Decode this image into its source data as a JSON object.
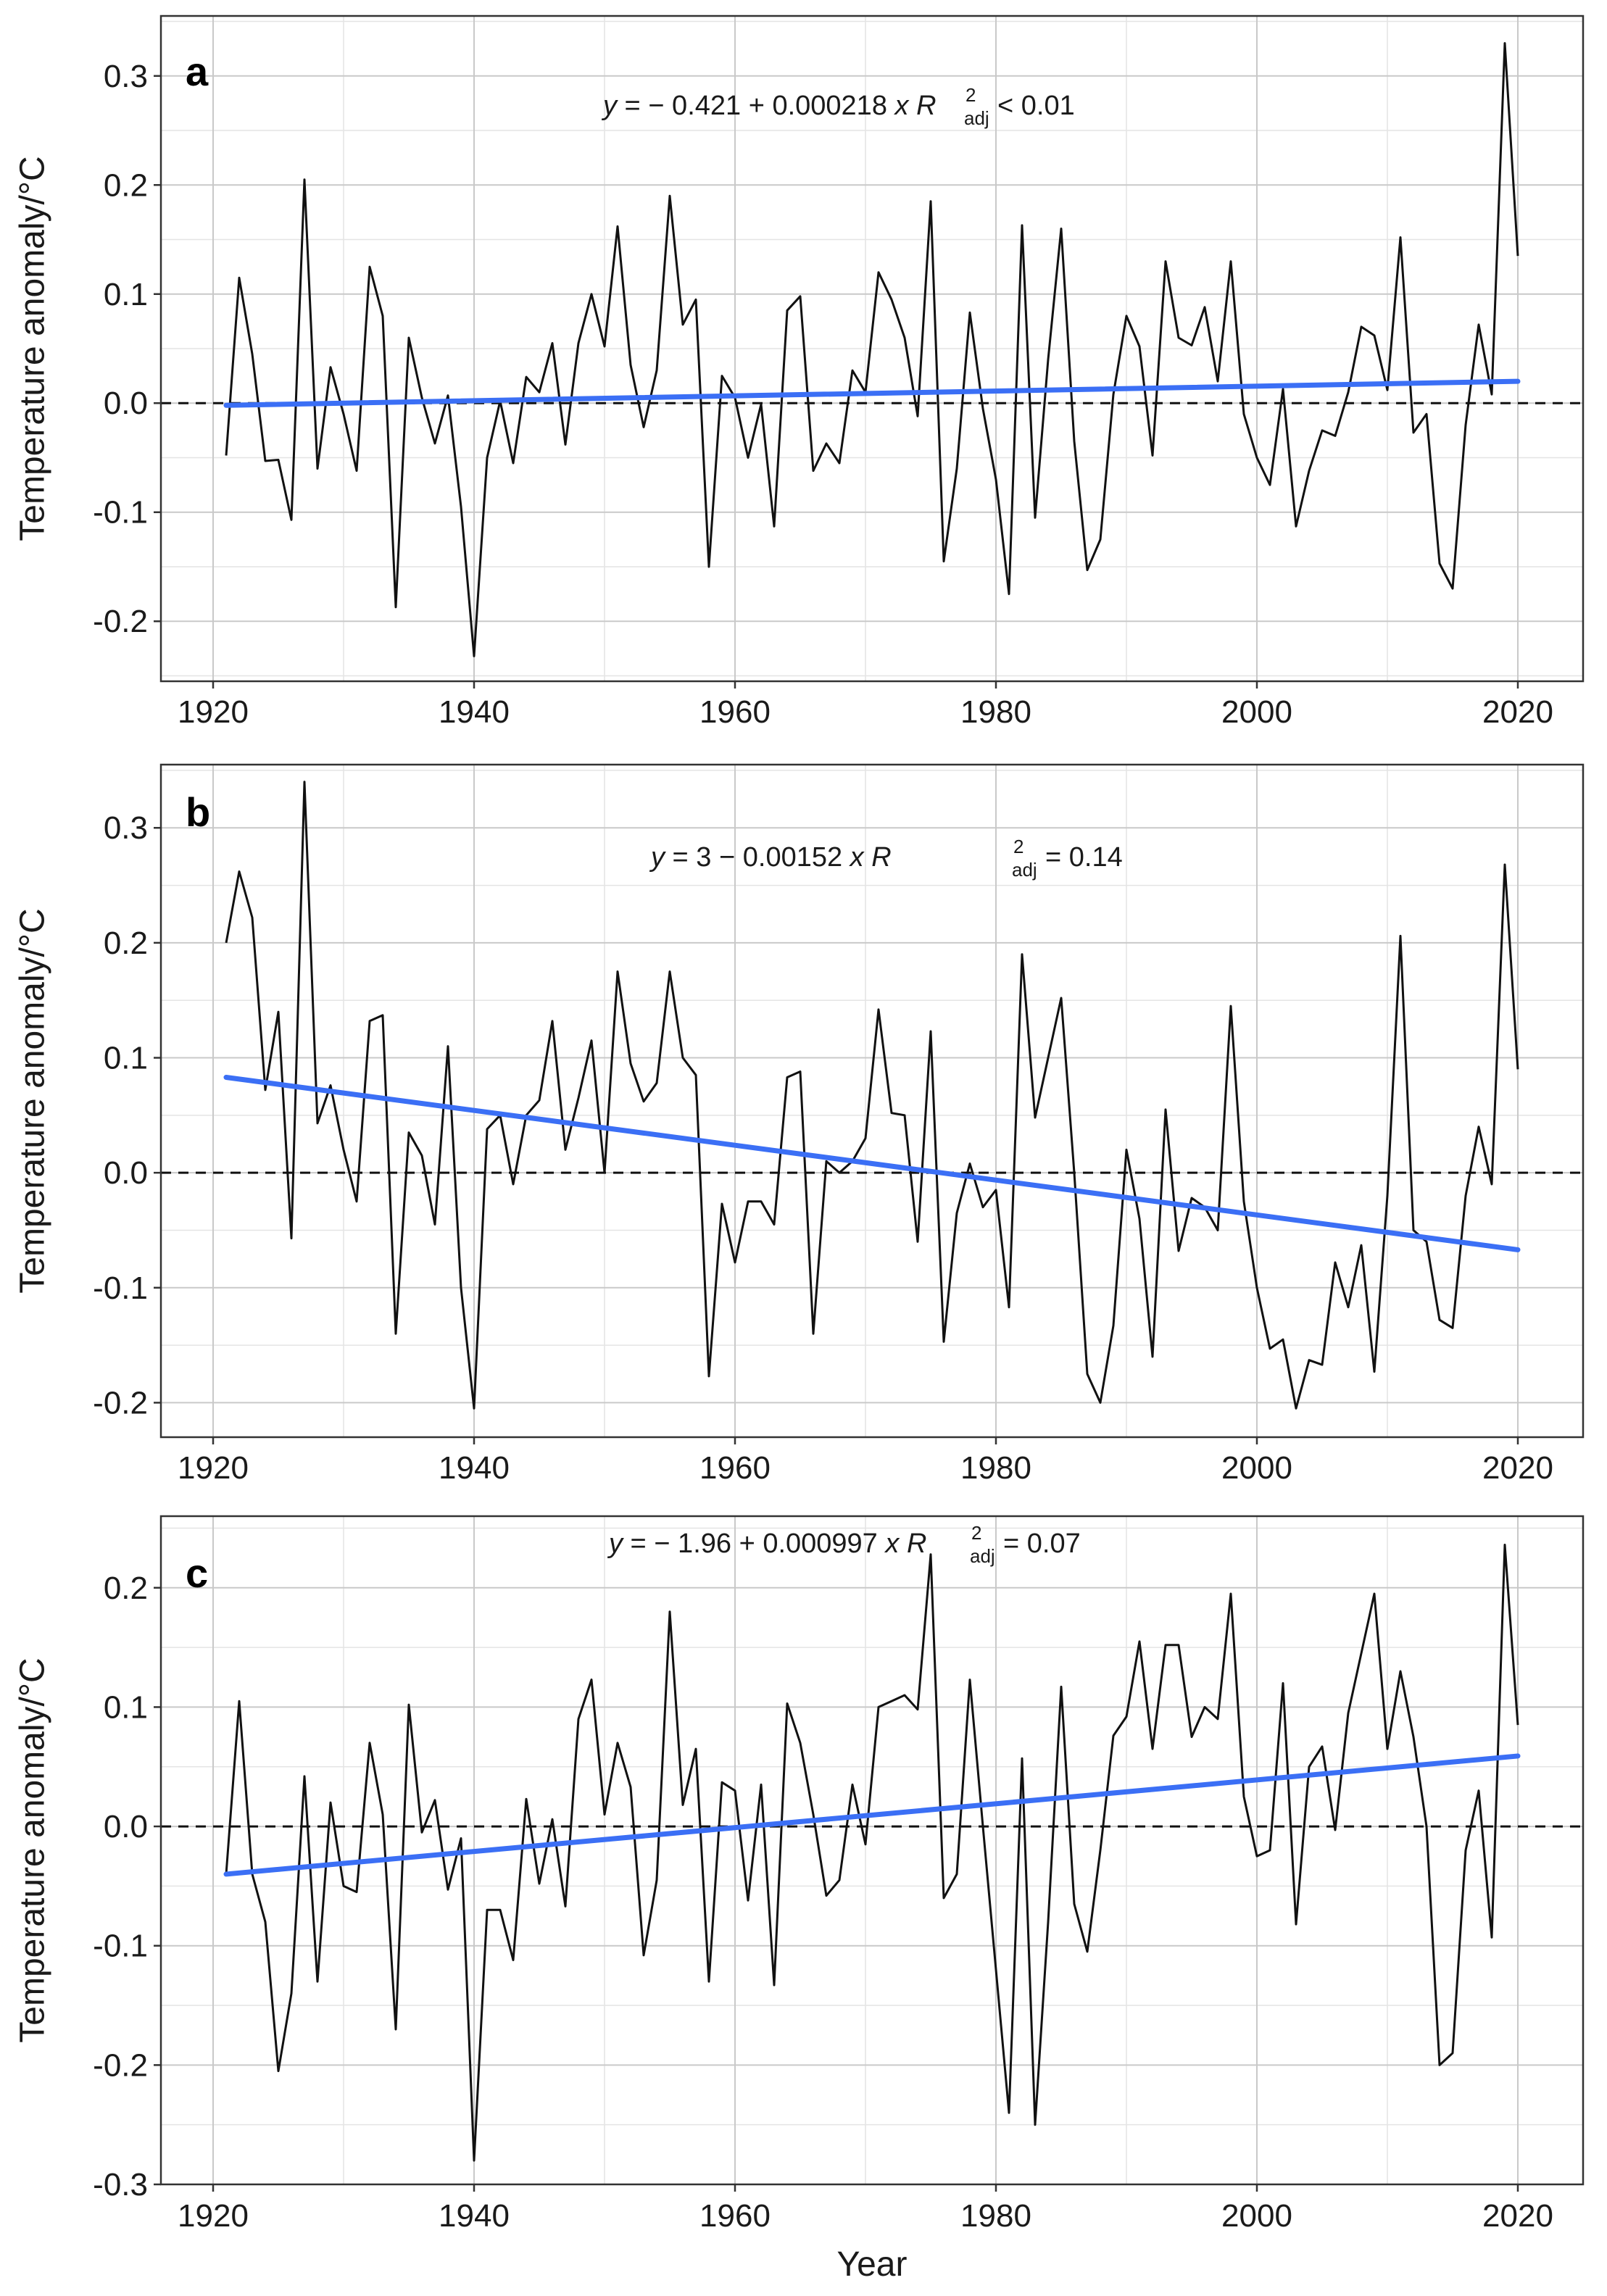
{
  "chart_data": [
    {
      "type": "line",
      "panel_label": "a",
      "xlabel": "",
      "ylabel": "Temperature anomaly/°C",
      "xlim": [
        1916,
        2025
      ],
      "ylim": [
        -0.255,
        0.355
      ],
      "x_ticks": [
        1920,
        1940,
        1960,
        1980,
        2000,
        2020
      ],
      "x_tick_labels": [
        "1920",
        "1940",
        "1960",
        "1980",
        "2000",
        "2020"
      ],
      "y_ticks": [
        -0.2,
        -0.1,
        0.0,
        0.1,
        0.2,
        0.3
      ],
      "y_tick_labels": [
        "-0.2",
        "-0.1",
        "0.0",
        "0.1",
        "0.2",
        "0.3"
      ],
      "grid": true,
      "reference_line": {
        "y": 0,
        "style": "dashed"
      },
      "equation": {
        "lhs": "y",
        "rhs": " = − 0.421 + 0.000218 ",
        "var": "x",
        "r_symbol": "R",
        "r_sup": "2",
        "r_sub": "adj",
        "r_value": " < 0.01"
      },
      "series": [
        {
          "name": "Temperature anomaly",
          "color": "#111111",
          "x_start": 1921,
          "values": [
            -0.048,
            0.115,
            0.045,
            -0.053,
            -0.052,
            -0.107,
            0.205,
            -0.06,
            0.033,
            -0.01,
            -0.062,
            0.125,
            0.08,
            -0.187,
            0.06,
            0.005,
            -0.037,
            0.007,
            -0.095,
            -0.232,
            -0.05,
            0.002,
            -0.055,
            0.024,
            0.01,
            0.055,
            -0.038,
            0.055,
            0.1,
            0.052,
            0.162,
            0.035,
            -0.022,
            0.03,
            0.19,
            0.072,
            0.095,
            -0.15,
            0.025,
            0.005,
            -0.05,
            -0.001,
            -0.113,
            0.085,
            0.098,
            -0.062,
            -0.037,
            -0.055,
            0.03,
            0.01,
            0.12,
            0.095,
            0.06,
            -0.012,
            0.185,
            -0.145,
            -0.06,
            0.083,
            -0.005,
            -0.07,
            -0.175,
            0.163,
            -0.105,
            0.04,
            0.16,
            -0.035,
            -0.153,
            -0.125,
            0.008,
            0.08,
            0.052,
            -0.048,
            0.13,
            0.06,
            0.053,
            0.088,
            0.02,
            0.13,
            -0.01,
            -0.05,
            -0.075,
            0.013,
            -0.113,
            -0.062,
            -0.025,
            -0.03,
            0.01,
            0.07,
            0.062,
            0.012,
            0.152,
            -0.027,
            -0.01,
            -0.147,
            -0.17,
            -0.02,
            0.072,
            0.008,
            0.33,
            0.135
          ]
        },
        {
          "name": "Linear trend",
          "color": "#3b6ff5",
          "x": [
            1921,
            2020
          ],
          "y": [
            -0.002,
            0.02
          ]
        }
      ]
    },
    {
      "type": "line",
      "panel_label": "b",
      "xlabel": "",
      "ylabel": "Temperature anomaly/°C",
      "xlim": [
        1916,
        2025
      ],
      "ylim": [
        -0.23,
        0.355
      ],
      "x_ticks": [
        1920,
        1940,
        1960,
        1980,
        2000,
        2020
      ],
      "x_tick_labels": [
        "1920",
        "1940",
        "1960",
        "1980",
        "2000",
        "2020"
      ],
      "y_ticks": [
        -0.2,
        -0.1,
        0.0,
        0.1,
        0.2,
        0.3
      ],
      "y_tick_labels": [
        "-0.2",
        "-0.1",
        "0.0",
        "0.1",
        "0.2",
        "0.3"
      ],
      "grid": true,
      "reference_line": {
        "y": 0,
        "style": "dashed"
      },
      "equation": {
        "lhs": "y",
        "rhs": " = 3 − 0.00152 ",
        "var": "x",
        "r_symbol": "R",
        "r_sup": "2",
        "r_sub": "adj",
        "r_value": " = 0.14"
      },
      "series": [
        {
          "name": "Temperature anomaly",
          "color": "#111111",
          "x_start": 1921,
          "values": [
            0.2,
            0.262,
            0.222,
            0.072,
            0.14,
            -0.057,
            0.34,
            0.043,
            0.076,
            0.02,
            -0.025,
            0.132,
            0.137,
            -0.14,
            0.035,
            0.015,
            -0.045,
            0.11,
            -0.1,
            -0.205,
            0.038,
            0.05,
            -0.01,
            0.05,
            0.063,
            0.132,
            0.02,
            0.065,
            0.115,
            0.0,
            0.175,
            0.095,
            0.062,
            0.078,
            0.175,
            0.1,
            0.085,
            -0.177,
            -0.027,
            -0.078,
            -0.025,
            -0.025,
            -0.045,
            0.083,
            0.088,
            -0.14,
            0.01,
            0.0,
            0.01,
            0.03,
            0.142,
            0.052,
            0.05,
            -0.06,
            0.123,
            -0.147,
            -0.035,
            0.008,
            -0.03,
            -0.015,
            -0.117,
            0.19,
            0.048,
            0.1,
            0.152,
            0.0,
            -0.175,
            -0.2,
            -0.133,
            0.02,
            -0.04,
            -0.16,
            0.055,
            -0.068,
            -0.022,
            -0.03,
            -0.05,
            0.145,
            -0.025,
            -0.1,
            -0.153,
            -0.145,
            -0.205,
            -0.163,
            -0.167,
            -0.078,
            -0.117,
            -0.063,
            -0.173,
            -0.02,
            0.206,
            -0.05,
            -0.06,
            -0.128,
            -0.135,
            -0.02,
            0.04,
            -0.01,
            0.268,
            0.09
          ]
        },
        {
          "name": "Linear trend",
          "color": "#3b6ff5",
          "x": [
            1921,
            2020
          ],
          "y": [
            0.083,
            -0.067
          ]
        }
      ]
    },
    {
      "type": "line",
      "panel_label": "c",
      "xlabel": "Year",
      "ylabel": "Temperature anomaly/°C",
      "xlim": [
        1916,
        2025
      ],
      "ylim": [
        -0.3,
        0.26
      ],
      "x_ticks": [
        1920,
        1940,
        1960,
        1980,
        2000,
        2020
      ],
      "x_tick_labels": [
        "1920",
        "1940",
        "1960",
        "1980",
        "2000",
        "2020"
      ],
      "y_ticks": [
        -0.3,
        -0.2,
        -0.1,
        0.0,
        0.1,
        0.2
      ],
      "y_tick_labels": [
        "-0.3",
        "-0.2",
        "-0.1",
        "0.0",
        "0.1",
        "0.2"
      ],
      "grid": true,
      "reference_line": {
        "y": 0,
        "style": "dashed"
      },
      "equation": {
        "lhs": "y",
        "rhs": " = − 1.96 + 0.000997 ",
        "var": "x",
        "r_symbol": "R",
        "r_sup": "2",
        "r_sub": "adj",
        "r_value": " = 0.07"
      },
      "series": [
        {
          "name": "Temperature anomaly",
          "color": "#111111",
          "x_start": 1921,
          "values": [
            -0.04,
            0.105,
            -0.04,
            -0.08,
            -0.205,
            -0.14,
            0.042,
            -0.13,
            0.02,
            -0.05,
            -0.055,
            0.07,
            0.01,
            -0.17,
            0.102,
            -0.005,
            0.022,
            -0.053,
            -0.01,
            -0.28,
            -0.07,
            -0.07,
            -0.112,
            0.023,
            -0.048,
            0.006,
            -0.067,
            0.09,
            0.123,
            0.01,
            0.07,
            0.033,
            -0.108,
            -0.045,
            0.18,
            0.018,
            0.065,
            -0.13,
            0.037,
            0.03,
            -0.062,
            0.035,
            -0.133,
            0.103,
            0.07,
            0.01,
            -0.058,
            -0.045,
            0.035,
            -0.015,
            0.1,
            0.105,
            0.11,
            0.098,
            0.228,
            -0.06,
            -0.04,
            0.123,
            0.0,
            -0.12,
            -0.24,
            0.057,
            -0.25,
            -0.08,
            0.117,
            -0.065,
            -0.105,
            -0.02,
            0.076,
            0.092,
            0.155,
            0.065,
            0.152,
            0.152,
            0.075,
            0.1,
            0.09,
            0.195,
            0.025,
            -0.025,
            -0.02,
            0.12,
            -0.082,
            0.05,
            0.067,
            -0.003,
            0.095,
            0.145,
            0.195,
            0.065,
            0.13,
            0.075,
            0.0,
            -0.2,
            -0.19,
            -0.02,
            0.03,
            -0.093,
            0.236,
            0.085
          ]
        },
        {
          "name": "Linear trend",
          "color": "#3b6ff5",
          "x": [
            1921,
            2020
          ],
          "y": [
            -0.04,
            0.059
          ]
        }
      ]
    }
  ]
}
